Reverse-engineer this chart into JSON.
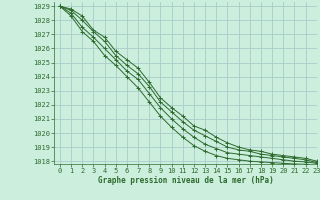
{
  "title": "Graphe pression niveau de la mer (hPa)",
  "bg_color": "#cceedd",
  "grid_color": "#aacccc",
  "line_color": "#2d6a2d",
  "xlim": [
    -0.5,
    23
  ],
  "ylim": [
    1017.8,
    1029.3
  ],
  "yticks": [
    1018,
    1019,
    1020,
    1021,
    1022,
    1023,
    1024,
    1025,
    1026,
    1027,
    1028,
    1029
  ],
  "xticks": [
    0,
    1,
    2,
    3,
    4,
    5,
    6,
    7,
    8,
    9,
    10,
    11,
    12,
    13,
    14,
    15,
    16,
    17,
    18,
    19,
    20,
    21,
    22,
    23
  ],
  "series": [
    [
      1029.0,
      1028.8,
      1028.3,
      1027.3,
      1026.8,
      1025.8,
      1025.2,
      1024.6,
      1023.6,
      1022.5,
      1021.8,
      1021.2,
      1020.5,
      1020.2,
      1019.7,
      1019.3,
      1019.0,
      1018.8,
      1018.7,
      1018.5,
      1018.4,
      1018.3,
      1018.2,
      1018.0
    ],
    [
      1029.0,
      1028.7,
      1028.0,
      1027.2,
      1026.5,
      1025.5,
      1024.8,
      1024.2,
      1023.3,
      1022.2,
      1021.5,
      1020.8,
      1020.2,
      1019.8,
      1019.4,
      1019.0,
      1018.8,
      1018.7,
      1018.5,
      1018.4,
      1018.3,
      1018.2,
      1018.1,
      1017.9
    ],
    [
      1029.0,
      1028.5,
      1027.5,
      1026.8,
      1026.0,
      1025.2,
      1024.4,
      1023.8,
      1022.8,
      1021.8,
      1021.0,
      1020.3,
      1019.7,
      1019.2,
      1018.9,
      1018.6,
      1018.5,
      1018.4,
      1018.3,
      1018.2,
      1018.1,
      1018.0,
      1017.95,
      1017.85
    ],
    [
      1029.0,
      1028.3,
      1027.2,
      1026.5,
      1025.5,
      1024.8,
      1024.0,
      1023.2,
      1022.2,
      1021.2,
      1020.4,
      1019.7,
      1019.1,
      1018.7,
      1018.4,
      1018.2,
      1018.1,
      1018.0,
      1017.95,
      1017.9,
      1017.85,
      1017.8,
      1017.78,
      1017.75
    ]
  ]
}
